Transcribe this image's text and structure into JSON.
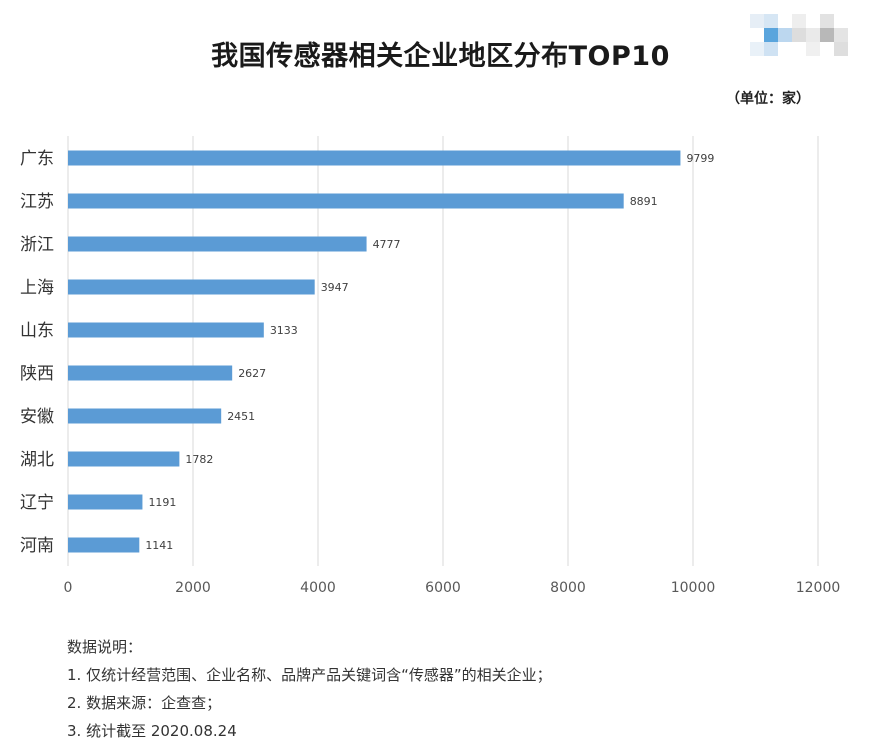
{
  "title": "我国传感器相关企业地区分布TOP10",
  "unit": "（单位：家）",
  "chart_data": {
    "type": "bar",
    "orientation": "horizontal",
    "title": "我国传感器相关企业地区分布TOP10",
    "categories": [
      "广东",
      "江苏",
      "浙江",
      "上海",
      "山东",
      "陕西",
      "安徽",
      "湖北",
      "辽宁",
      "河南"
    ],
    "values": [
      9799,
      8891,
      4777,
      3947,
      3133,
      2627,
      2451,
      1782,
      1191,
      1141
    ],
    "xlim": [
      0,
      12000
    ],
    "xticks": [
      0,
      2000,
      4000,
      6000,
      8000,
      10000,
      12000
    ],
    "grid": true,
    "bar_color": "#5b9bd5",
    "data_labels": true
  },
  "notes": {
    "heading": "数据说明：",
    "items": [
      "1. 仅统计经营范围、企业名称、品牌产品关键词含“传感器”的相关企业；",
      "2. 数据来源：企查查；",
      "3. 统计截至 2020.08.24"
    ]
  }
}
